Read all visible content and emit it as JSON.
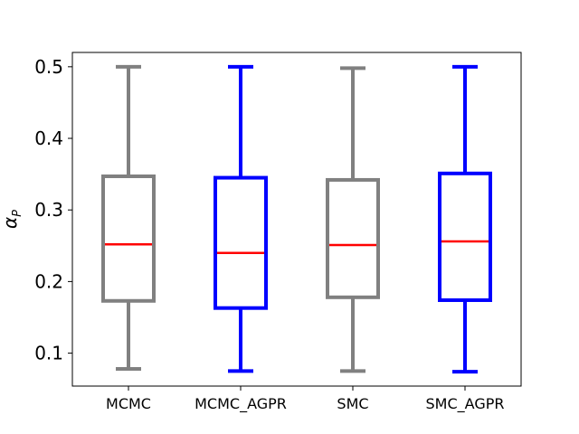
{
  "chart_data": {
    "type": "box",
    "title": "",
    "xlabel": "",
    "ylabel": "α",
    "ylabel_subscript": "P",
    "ylim": [
      0.054,
      0.52
    ],
    "yticks": [
      0.1,
      0.2,
      0.3,
      0.4,
      0.5
    ],
    "ytick_labels": [
      "0.1",
      "0.2",
      "0.3",
      "0.4",
      "0.5"
    ],
    "grid": false,
    "categories": [
      "MCMC",
      "MCMC_AGPR",
      "SMC",
      "SMC_AGPR"
    ],
    "boxes": [
      {
        "category": "MCMC",
        "whisker_low": 0.078,
        "q1": 0.173,
        "median": 0.252,
        "q3": 0.347,
        "whisker_high": 0.5,
        "color": "#808080"
      },
      {
        "category": "MCMC_AGPR",
        "whisker_low": 0.075,
        "q1": 0.163,
        "median": 0.24,
        "q3": 0.345,
        "whisker_high": 0.5,
        "color": "#0000ff"
      },
      {
        "category": "SMC",
        "whisker_low": 0.075,
        "q1": 0.178,
        "median": 0.251,
        "q3": 0.342,
        "whisker_high": 0.498,
        "color": "#808080"
      },
      {
        "category": "SMC_AGPR",
        "whisker_low": 0.074,
        "q1": 0.174,
        "median": 0.256,
        "q3": 0.351,
        "whisker_high": 0.5,
        "color": "#0000ff"
      }
    ],
    "median_color": "#ff0000"
  }
}
